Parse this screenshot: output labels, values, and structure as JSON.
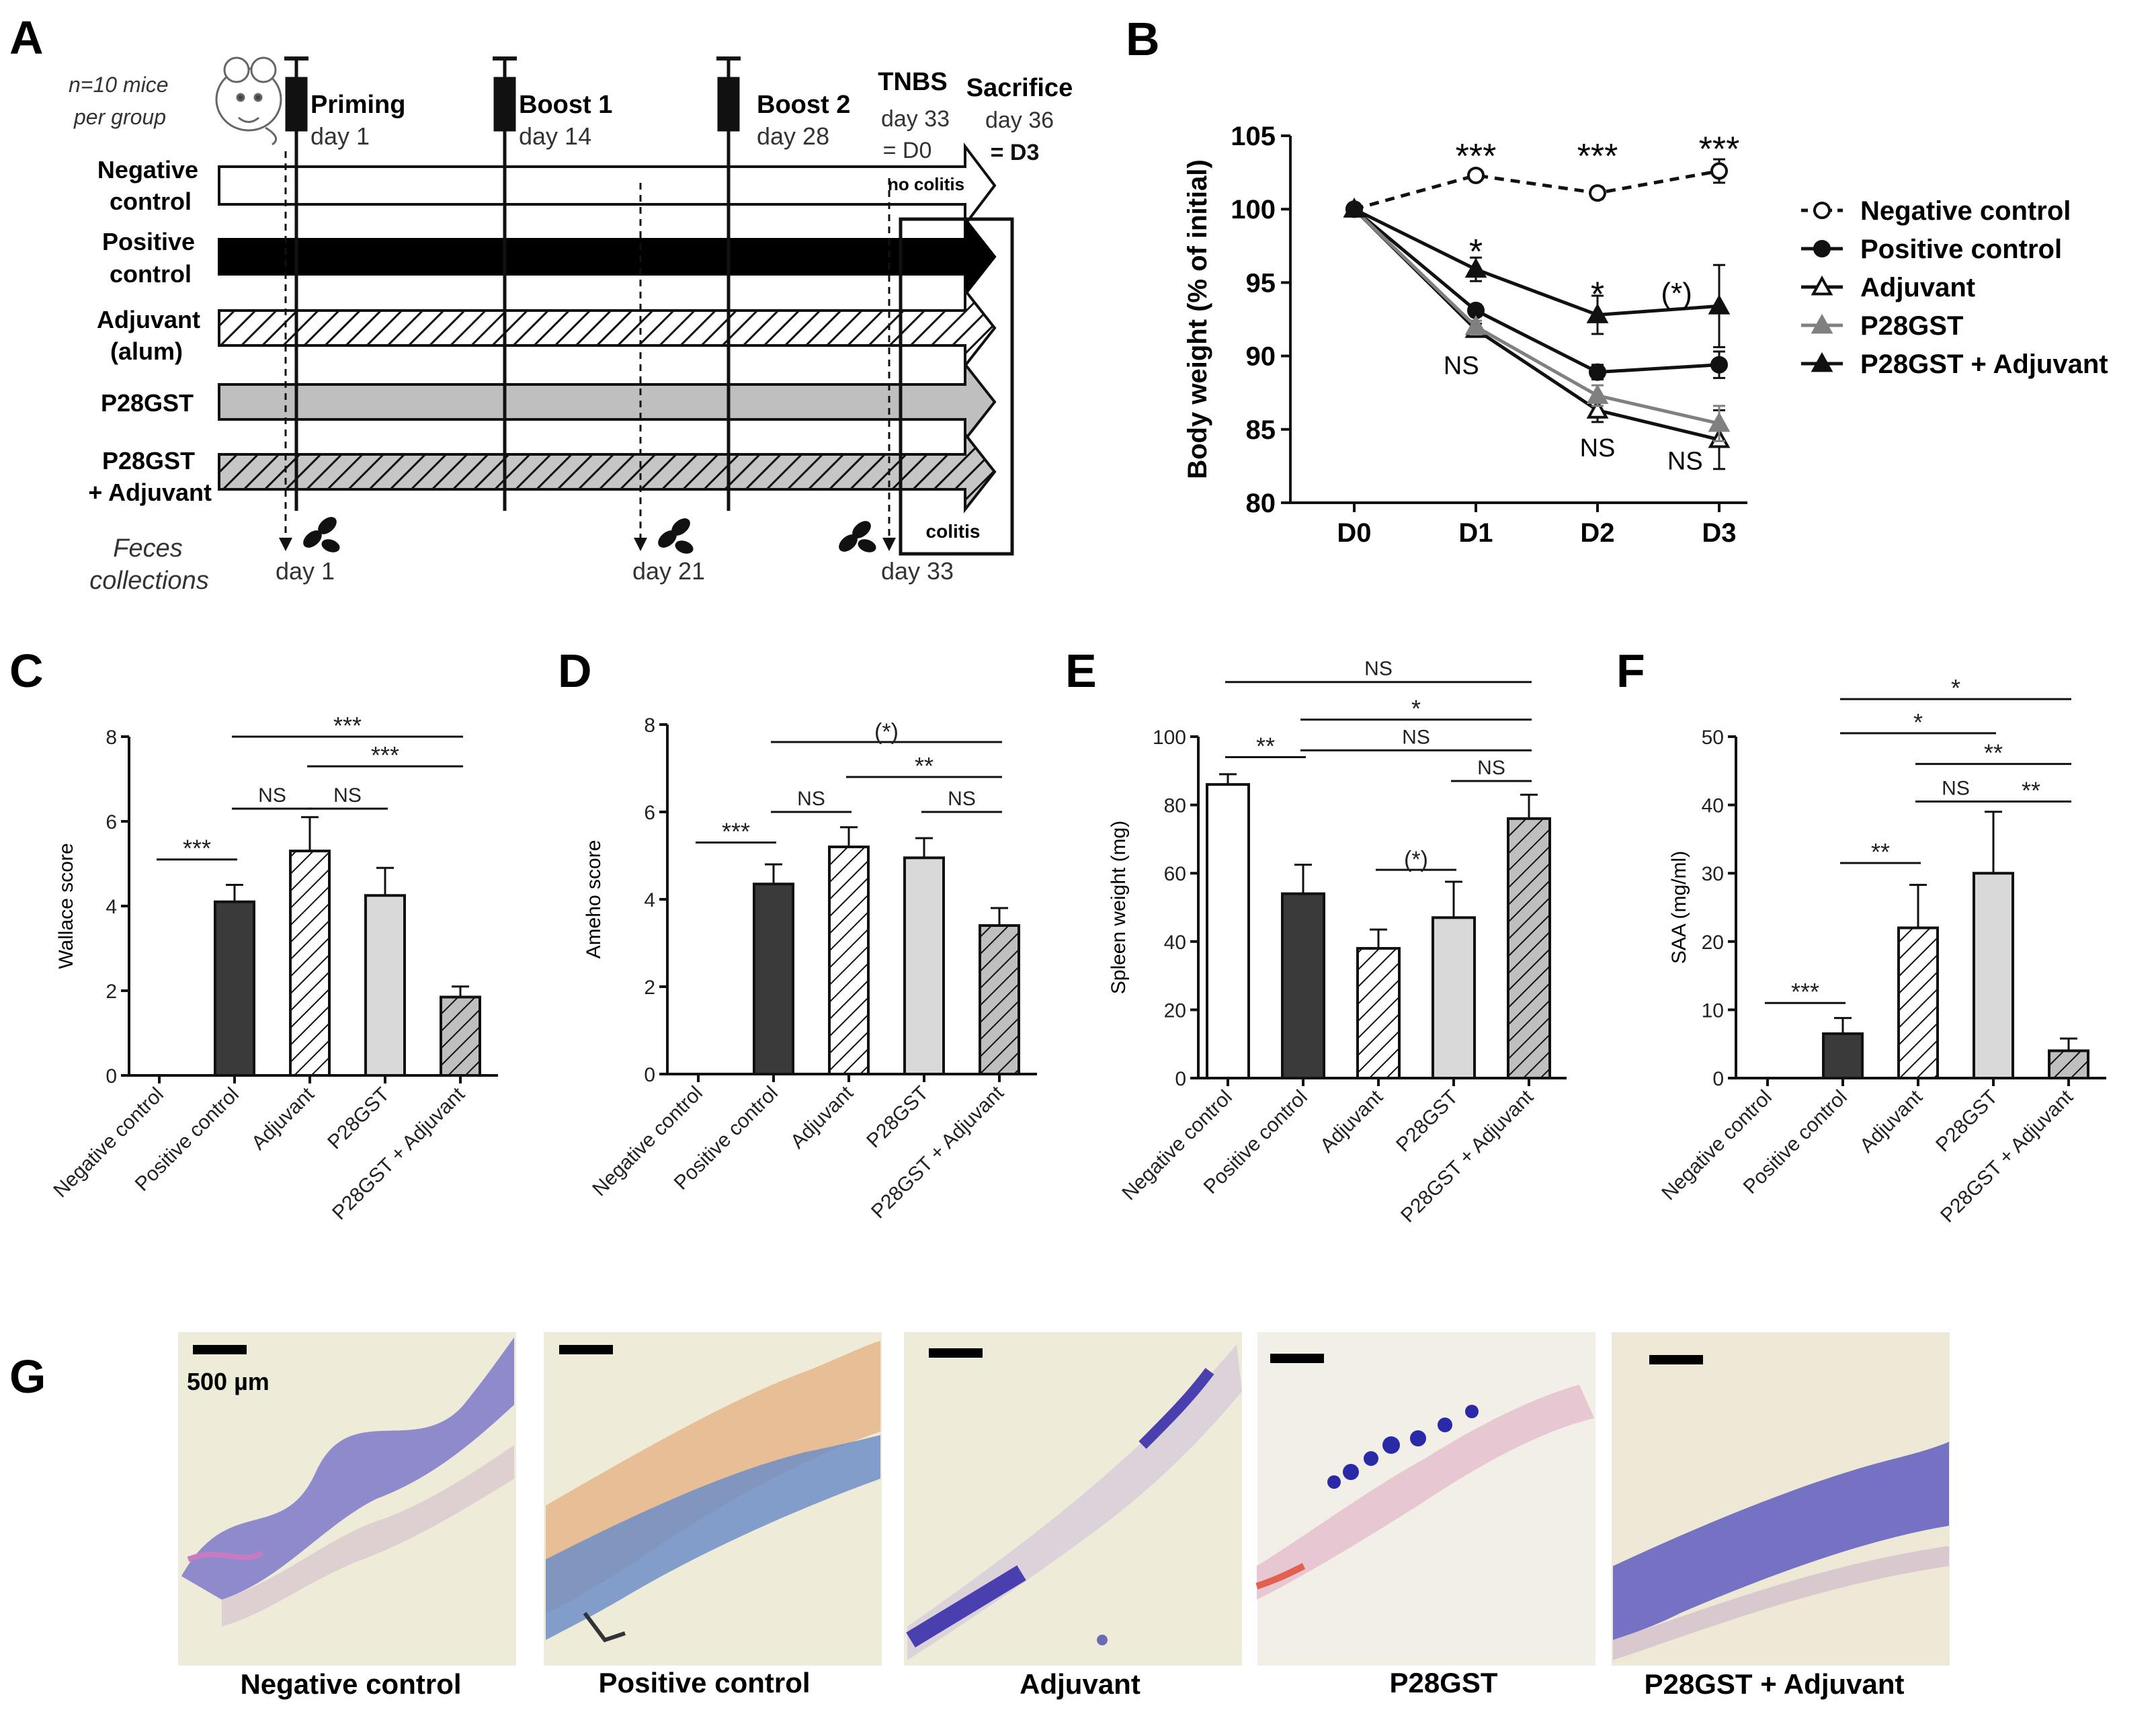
{
  "panels": {
    "a": {
      "letter": "A",
      "mice_note": [
        "n=10 mice",
        "per group"
      ],
      "events": [
        {
          "name": "Priming",
          "day": "day 1"
        },
        {
          "name": "Boost 1",
          "day": "day 14"
        },
        {
          "name": "Boost 2",
          "day": "day 28"
        },
        {
          "name": "TNBS",
          "day": "day 33",
          "eq": "= D0"
        },
        {
          "name": "Sacrifice",
          "day": "day 36",
          "eq": "= D3"
        }
      ],
      "groups": [
        {
          "label": [
            "Negative",
            "control"
          ],
          "fill": "#ffffff",
          "pattern": "none"
        },
        {
          "label": [
            "Positive",
            "control"
          ],
          "fill": "#000000",
          "pattern": "none"
        },
        {
          "label": [
            "Adjuvant",
            "(alum)"
          ],
          "fill": "#ffffff",
          "pattern": "hatch"
        },
        {
          "label": [
            "P28GST"
          ],
          "fill": "#bfbfbf",
          "pattern": "none"
        },
        {
          "label": [
            "P28GST",
            "+ Adjuvant"
          ],
          "fill": "#5a5a5a",
          "pattern": "hatch"
        }
      ],
      "no_colitis": "no colitis",
      "colitis": "colitis",
      "feces_label": [
        "Feces",
        "collections"
      ],
      "feces_days": [
        "day 1",
        "day 21",
        "day 33"
      ]
    },
    "b": {
      "letter": "B"
    },
    "c": {
      "letter": "C"
    },
    "d": {
      "letter": "D"
    },
    "e": {
      "letter": "E"
    },
    "f": {
      "letter": "F"
    },
    "g": {
      "letter": "G",
      "scale_label": "500 µm",
      "captions": [
        "Negative control",
        "Positive control",
        "Adjuvant",
        "P28GST",
        "P28GST + Adjuvant"
      ]
    }
  },
  "colors": {
    "positive_control": "#3a3a3a",
    "p28gst": "#d9d9d9",
    "p28gst_line": "#808080",
    "adjuvant_hatch": "#ffffff",
    "combo_hatch": "#bfbfbf",
    "histo_background": "#ede9d6",
    "histo_tissue": "#5a57b6"
  },
  "chart_data": [
    {
      "id": "B",
      "type": "line",
      "x": [
        "D0",
        "D1",
        "D2",
        "D3"
      ],
      "ylabel": "Body weight (% of initial)",
      "ylim": [
        80,
        105
      ],
      "yticks": [
        80,
        85,
        90,
        95,
        100,
        105
      ],
      "legend_position": "right",
      "series": [
        {
          "name": "Negative control",
          "values": [
            100,
            102.3,
            101.1,
            102.6
          ],
          "err": [
            0,
            0.3,
            0.4,
            0.8
          ],
          "marker": "open-circle",
          "dashed": true
        },
        {
          "name": "Positive control",
          "values": [
            100,
            93.1,
            88.9,
            89.4
          ],
          "err": [
            0,
            0.4,
            0.5,
            0.9
          ],
          "marker": "filled-circle",
          "dashed": false
        },
        {
          "name": "Adjuvant",
          "values": [
            100,
            91.8,
            86.3,
            84.3
          ],
          "err": [
            0,
            0.4,
            0.8,
            2.0
          ],
          "marker": "open-triangle",
          "dashed": false
        },
        {
          "name": "P28GST",
          "values": [
            100,
            92.0,
            87.3,
            85.4
          ],
          "err": [
            0,
            0.4,
            0.7,
            1.2
          ],
          "marker": "gray-triangle",
          "dashed": false
        },
        {
          "name": "P28GST + Adjuvant",
          "values": [
            100,
            95.9,
            92.8,
            93.4
          ],
          "err": [
            0,
            0.8,
            1.3,
            2.8
          ],
          "marker": "filled-triangle",
          "dashed": false
        }
      ],
      "annotations": [
        {
          "text": "***",
          "x": "D1",
          "y": 103.8
        },
        {
          "text": "***",
          "x": "D2",
          "y": 103.8
        },
        {
          "text": "***",
          "x": "D3",
          "y": 104.3
        },
        {
          "text": "*",
          "x": "D1",
          "y": 97.3
        },
        {
          "text": "*",
          "x": "D2",
          "y": 94.4
        },
        {
          "text": "(*)",
          "x": "D3",
          "y": 94.6,
          "dx": -0.35
        },
        {
          "text": "NS",
          "x": "D1",
          "y": 89.4,
          "dx": -0.12
        },
        {
          "text": "NS",
          "x": "D2",
          "y": 83.8
        },
        {
          "text": "NS",
          "x": "D3",
          "y": 82.9,
          "dx": -0.28
        }
      ]
    },
    {
      "id": "C",
      "type": "bar",
      "categories": [
        "Negative control",
        "Positive control",
        "Adjuvant",
        "P28GST",
        "P28GST + Adjuvant"
      ],
      "values": [
        0,
        4.1,
        5.3,
        4.25,
        1.85
      ],
      "err": [
        0,
        0.4,
        0.8,
        0.65,
        0.25
      ],
      "ylabel": "Wallace score",
      "ylim": [
        0,
        8
      ],
      "yticks": [
        0,
        2,
        4,
        6,
        8
      ],
      "comparisons": [
        {
          "from": 0,
          "to": 1,
          "y": 5.1,
          "label": "***"
        },
        {
          "from": 1,
          "to": 2,
          "y": 6.3,
          "label": "NS"
        },
        {
          "from": 2,
          "to": 3,
          "y": 6.3,
          "label": "NS"
        },
        {
          "from": 1,
          "to": 4,
          "y": 8.0,
          "label": "***"
        },
        {
          "from": 2,
          "to": 4,
          "y": 7.3,
          "label": "***"
        }
      ]
    },
    {
      "id": "D",
      "type": "bar",
      "categories": [
        "Negative control",
        "Positive control",
        "Adjuvant",
        "P28GST",
        "P28GST + Adjuvant"
      ],
      "values": [
        0,
        4.35,
        5.2,
        4.95,
        3.4
      ],
      "err": [
        0,
        0.45,
        0.45,
        0.45,
        0.4
      ],
      "ylabel": "Ameho score",
      "ylim": [
        0,
        8
      ],
      "yticks": [
        0,
        2,
        4,
        6,
        8
      ],
      "comparisons": [
        {
          "from": 0,
          "to": 1,
          "y": 5.3,
          "label": "***"
        },
        {
          "from": 1,
          "to": 2,
          "y": 6.0,
          "label": "NS"
        },
        {
          "from": 3,
          "to": 4,
          "y": 6.0,
          "label": "NS"
        },
        {
          "from": 2,
          "to": 4,
          "y": 6.8,
          "label": "**"
        },
        {
          "from": 1,
          "to": 4,
          "y": 7.6,
          "label": "(*)"
        }
      ]
    },
    {
      "id": "E",
      "type": "bar",
      "categories": [
        "Negative control",
        "Positive control",
        "Adjuvant",
        "P28GST",
        "P28GST + Adjuvant"
      ],
      "values": [
        86,
        54,
        38,
        47,
        76
      ],
      "err": [
        3,
        8.5,
        5.5,
        10.5,
        7
      ],
      "ylabel": "Spleen weight (mg)",
      "ylim": [
        0,
        100
      ],
      "yticks": [
        0,
        20,
        40,
        60,
        80,
        100
      ],
      "comparisons": [
        {
          "from": 0,
          "to": 1,
          "y": 94,
          "label": "**"
        },
        {
          "from": 2,
          "to": 3,
          "y": 61,
          "label": "(*)"
        },
        {
          "from": 3,
          "to": 4,
          "y": 87,
          "label": "NS"
        },
        {
          "from": 1,
          "to": 4,
          "y": 96,
          "label": "NS"
        },
        {
          "from": 1,
          "to": 4,
          "y": 105,
          "label": "*"
        },
        {
          "from": 0,
          "to": 4,
          "y": 116,
          "label": "NS"
        }
      ]
    },
    {
      "id": "F",
      "type": "bar",
      "categories": [
        "Negative control",
        "Positive control",
        "Adjuvant",
        "P28GST",
        "P28GST + Adjuvant"
      ],
      "values": [
        0,
        6.5,
        22,
        30,
        4
      ],
      "err": [
        0,
        2.3,
        6.3,
        9,
        1.8
      ],
      "ylabel": "SAA (mg/ml)",
      "ylim": [
        0,
        50
      ],
      "yticks": [
        0,
        10,
        20,
        30,
        40,
        50
      ],
      "comparisons": [
        {
          "from": 0,
          "to": 1,
          "y": 11,
          "label": "***"
        },
        {
          "from": 1,
          "to": 2,
          "y": 31.5,
          "label": "**"
        },
        {
          "from": 3,
          "to": 4,
          "y": 40.5,
          "label": "**"
        },
        {
          "from": 2,
          "to": 3,
          "y": 40.5,
          "label": "NS"
        },
        {
          "from": 2,
          "to": 4,
          "y": 46,
          "label": "**"
        },
        {
          "from": 1,
          "to": 3,
          "y": 50.5,
          "label": "*"
        },
        {
          "from": 1,
          "to": 4,
          "y": 55.5,
          "label": "*"
        }
      ]
    }
  ]
}
